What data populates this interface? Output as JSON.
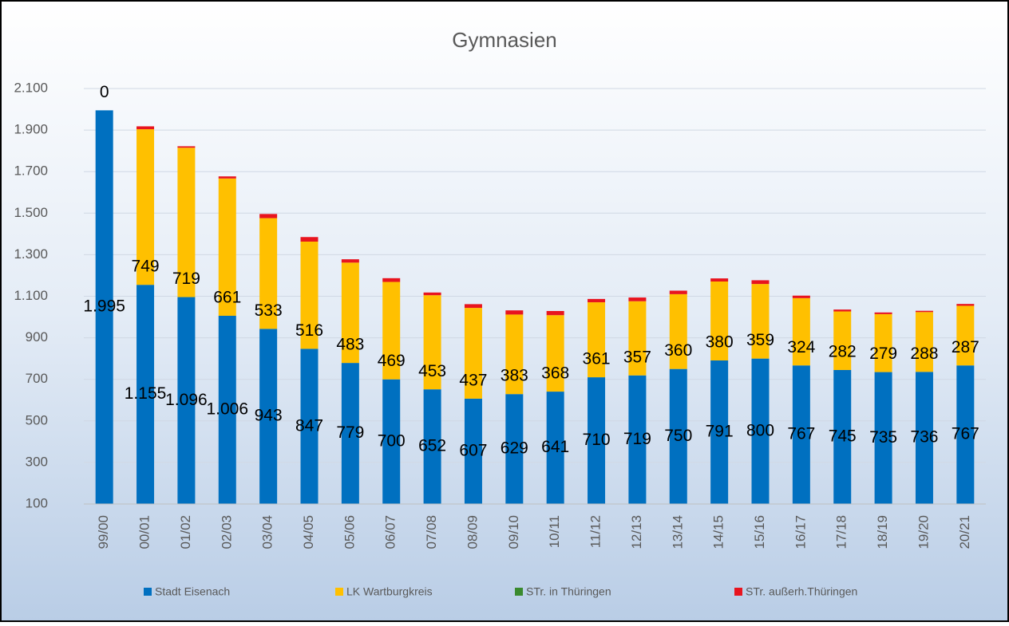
{
  "chart_data": {
    "type": "stacked-bar",
    "title": "Gymnasien",
    "categories": [
      "99/00",
      "00/01",
      "01/02",
      "02/03",
      "03/04",
      "04/05",
      "05/06",
      "06/07",
      "07/08",
      "08/09",
      "09/10",
      "10/11",
      "11/12",
      "12/13",
      "13/14",
      "14/15",
      "15/16",
      "16/17",
      "17/18",
      "18/19",
      "19/20",
      "20/21"
    ],
    "series": [
      {
        "name": "Stadt Eisenach",
        "color": "#0070c0",
        "values": [
          1995,
          1155,
          1096,
          1006,
          943,
          847,
          779,
          700,
          652,
          607,
          629,
          641,
          710,
          719,
          750,
          791,
          800,
          767,
          745,
          735,
          736,
          767
        ],
        "value_labels": [
          "1.995",
          "1.155",
          "1.096",
          "1.006",
          "943",
          "847",
          "779",
          "700",
          "652",
          "607",
          "629",
          "641",
          "710",
          "719",
          "750",
          "791",
          "800",
          "767",
          "745",
          "735",
          "736",
          "767"
        ]
      },
      {
        "name": "LK Wartburgkreis",
        "color": "#ffc000",
        "values": [
          0,
          749,
          719,
          661,
          533,
          516,
          483,
          469,
          453,
          437,
          383,
          368,
          361,
          357,
          360,
          380,
          359,
          324,
          282,
          279,
          288,
          287
        ]
      },
      {
        "name": "STr. in Thüringen",
        "color": "#3a8a2e",
        "values": [
          0,
          0,
          0,
          0,
          0,
          0,
          0,
          0,
          0,
          0,
          0,
          0,
          0,
          0,
          0,
          0,
          0,
          0,
          0,
          0,
          0,
          0
        ]
      },
      {
        "name": "STr. außerh.Thüringen",
        "color": "#e8141e",
        "values": [
          0,
          14,
          7,
          10,
          20,
          22,
          16,
          18,
          13,
          18,
          20,
          20,
          16,
          18,
          17,
          15,
          18,
          12,
          9,
          8,
          6,
          9
        ]
      }
    ],
    "ylim": [
      100,
      2100
    ],
    "yticks": [
      100,
      300,
      500,
      700,
      900,
      {
        "value": 1100,
        "label": "1.100"
      },
      {
        "value": 1300,
        "label": "1.300"
      },
      {
        "value": 1500,
        "label": "1.500"
      },
      {
        "value": 1700,
        "label": "1.700"
      },
      {
        "value": 1900,
        "label": "1.900"
      },
      {
        "value": 2100,
        "label": "2.100"
      }
    ],
    "grid": true,
    "legend": "bottom"
  }
}
